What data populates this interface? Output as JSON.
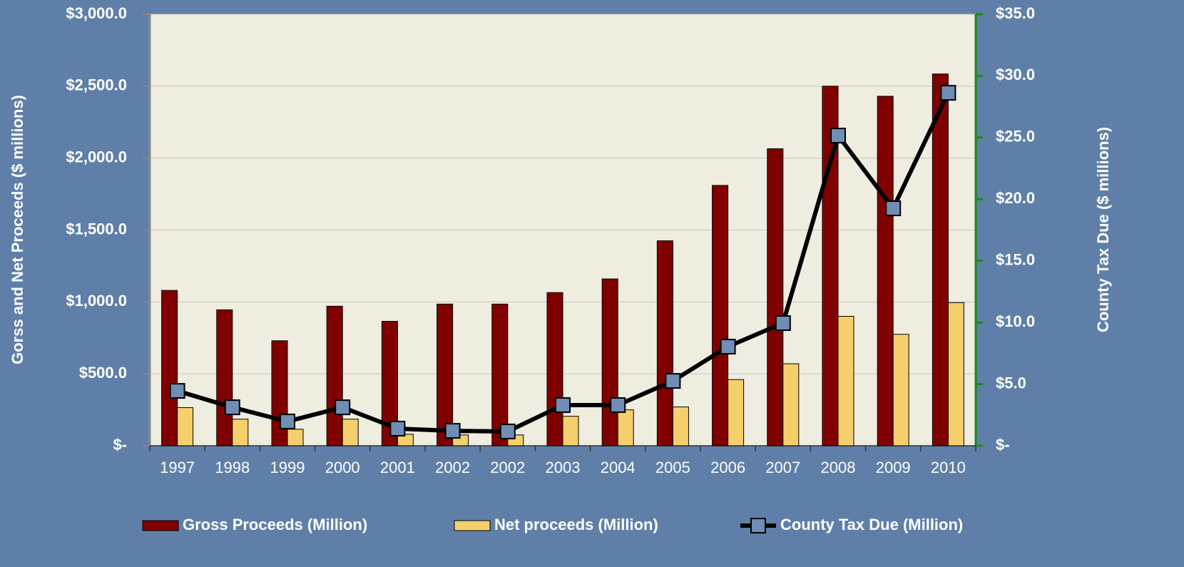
{
  "chart_data": {
    "type": "bar",
    "y_label": "Gorss and Net Proceeds ($ millions)",
    "y2_label": "County Tax Due ($ millions)",
    "categories": [
      "1997",
      "1998",
      "1999",
      "2000",
      "2001",
      "2002",
      "2002",
      "2003",
      "2004",
      "2005",
      "2006",
      "2007",
      "2008",
      "2009",
      "2010"
    ],
    "series": [
      {
        "name": "Gross Proceeds (Million)",
        "type": "bar",
        "color": "#800000",
        "values": [
          1080,
          945,
          730,
          970,
          865,
          985,
          985,
          1065,
          1160,
          1425,
          1810,
          2065,
          2500,
          2430,
          2585
        ]
      },
      {
        "name": "Net proceeds (Million)",
        "type": "bar",
        "color": "#f4cf6b",
        "values": [
          265,
          185,
          115,
          185,
          80,
          75,
          75,
          205,
          250,
          270,
          460,
          570,
          900,
          775,
          995
        ]
      },
      {
        "name": "County Tax Due (Million)",
        "type": "line",
        "axis": "y2",
        "color": "#000000",
        "marker_color": "#6f8db5",
        "values": [
          4.45,
          3.12,
          1.97,
          3.12,
          1.39,
          1.21,
          1.16,
          3.3,
          3.3,
          5.26,
          8.04,
          9.95,
          25.16,
          19.26,
          28.63
        ]
      }
    ],
    "ylim": [
      0,
      3000
    ],
    "yticks": [
      {
        "value": 0,
        "label": "$-"
      },
      {
        "value": 500,
        "label": "$500.0"
      },
      {
        "value": 1000,
        "label": "$1,000.0"
      },
      {
        "value": 1500,
        "label": "$1,500.0"
      },
      {
        "value": 2000,
        "label": "$2,000.0"
      },
      {
        "value": 2500,
        "label": "$2,500.0"
      },
      {
        "value": 3000,
        "label": "$3,000.0"
      }
    ],
    "y2lim": [
      0,
      35
    ],
    "y2ticks": [
      {
        "value": 0,
        "label": "$-"
      },
      {
        "value": 5,
        "label": "$5.0"
      },
      {
        "value": 10,
        "label": "$10.0"
      },
      {
        "value": 15,
        "label": "$15.0"
      },
      {
        "value": 20,
        "label": "$20.0"
      },
      {
        "value": 25,
        "label": "$25.0"
      },
      {
        "value": 30,
        "label": "$30.0"
      },
      {
        "value": 35,
        "label": "$35.0"
      }
    ],
    "grid": true,
    "legend": "bottom"
  }
}
